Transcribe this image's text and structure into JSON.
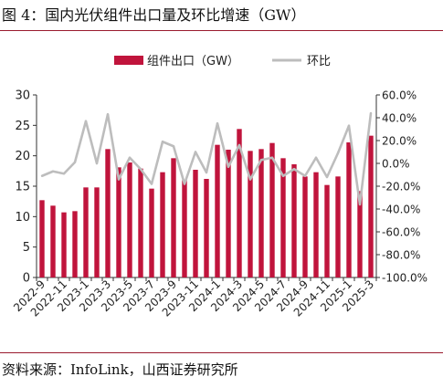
{
  "figure": {
    "title": "图 4：国内光伏组件出口量及环比增速（GW）",
    "source": "资料来源：InfoLink，山西证券研究所"
  },
  "colors": {
    "bar": "#c0143c",
    "line": "#bdbdbd",
    "rule": "#9a1b2e",
    "axis": "#333333"
  },
  "chart_data": {
    "type": "bar",
    "title": "",
    "x": [
      "2022-9",
      "2022-10",
      "2022-11",
      "2022-12",
      "2023-1",
      "2023-2",
      "2023-3",
      "2023-4",
      "2023-5",
      "2023-6",
      "2023-7",
      "2023-8",
      "2023-9",
      "2023-10",
      "2023-11",
      "2023-12",
      "2024-1",
      "2024-2",
      "2024-3",
      "2024-4",
      "2024-5",
      "2024-6",
      "2024-7",
      "2024-8",
      "2024-9",
      "2024-10",
      "2024-11",
      "2024-12",
      "2025-1",
      "2025-2",
      "2025-3"
    ],
    "tick_labels": [
      "2022-9",
      "2022-11",
      "2023-1",
      "2023-3",
      "2023-5",
      "2023-7",
      "2023-9",
      "2023-11",
      "2024-1",
      "2024-3",
      "2024-5",
      "2024-7",
      "2024-9",
      "2024-11",
      "2025-1",
      "2025-3"
    ],
    "series": [
      {
        "name": "组件出口（GW）",
        "type": "bar",
        "axis": "left",
        "values": [
          12.7,
          11.8,
          10.7,
          10.9,
          14.8,
          14.8,
          21.1,
          18.1,
          18.9,
          17.9,
          14.6,
          17.3,
          19.6,
          16.0,
          17.7,
          16.2,
          21.8,
          21.0,
          24.4,
          20.8,
          21.1,
          22.1,
          19.6,
          18.6,
          16.6,
          17.3,
          15.2,
          16.6,
          22.2,
          14.2,
          23.3
        ]
      },
      {
        "name": "环比",
        "type": "line",
        "axis": "right",
        "values": [
          -11.0,
          -7.0,
          -9.0,
          1.0,
          37.0,
          0.0,
          43.0,
          -14.0,
          5.0,
          -5.0,
          -18.0,
          19.0,
          15.0,
          -18.0,
          10.0,
          -8.0,
          35.0,
          -3.0,
          16.0,
          -14.0,
          3.0,
          5.0,
          -11.0,
          -5.0,
          -11.0,
          5.0,
          -12.0,
          9.0,
          33.0,
          -36.0,
          44.0
        ]
      }
    ],
    "y_left": {
      "lim": [
        0,
        30
      ],
      "ticks": [
        0,
        5,
        10,
        15,
        20,
        25,
        30
      ],
      "tick_labels": [
        "0",
        "5",
        "10",
        "15",
        "20",
        "25",
        "30"
      ]
    },
    "y_right": {
      "lim": [
        -100,
        60
      ],
      "ticks": [
        60,
        40,
        20,
        0,
        -20,
        -40,
        -60,
        -80,
        -100
      ],
      "tick_labels": [
        "60.0%",
        "40.0%",
        "20.0%",
        "0.0%",
        "-20.0%",
        "-40.0%",
        "-60.0%",
        "-80.0%",
        "-100.0%"
      ]
    },
    "grid": false,
    "legend": {
      "position": "top-center",
      "items": [
        "组件出口（GW）",
        "环比"
      ]
    }
  }
}
